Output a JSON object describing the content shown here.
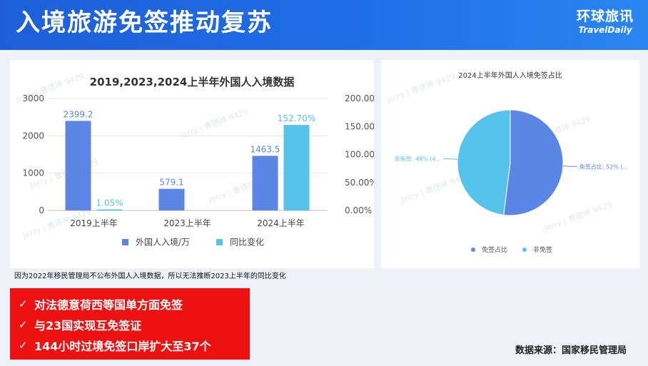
{
  "header": {
    "title": "入境旅游免签推动复苏"
  },
  "logo": {
    "cn": "环球旅讯",
    "en": "TravelDaily"
  },
  "watermark": "Jerry | 曹德坤 9429",
  "chart_data": [
    {
      "type": "bar",
      "title": "2019,2023,2024上半年外国人入境数据",
      "categories": [
        "2019上半年",
        "2023上半年",
        "2024上半年"
      ],
      "series": [
        {
          "name": "外国人入境/万",
          "axis": "left",
          "values": [
            2399.2,
            579.1,
            1463.5
          ],
          "labels": [
            "2399.2",
            "579.1",
            "1463.5"
          ],
          "color": "#5b86e5"
        },
        {
          "name": "同比变化",
          "axis": "right",
          "values": [
            1.05,
            null,
            152.7
          ],
          "labels": [
            "1.05%",
            "",
            "152.70%"
          ],
          "color": "#56c3ec"
        }
      ],
      "y_left": {
        "ylim": [
          0,
          3000
        ],
        "ticks": [
          0,
          1000,
          2000,
          3000
        ]
      },
      "y_right": {
        "ylim": [
          0,
          200
        ],
        "ticks": [
          "0.00%",
          "50.00%",
          "100.00%",
          "150.00%",
          "200.00%"
        ]
      },
      "legend": "bottom",
      "grid": true
    },
    {
      "type": "pie",
      "title": "2024上半年外国人入境免签占比",
      "slices": [
        {
          "name": "免签占比",
          "value": 52,
          "label": "免签占比: 52% (...",
          "color": "#5b86e5"
        },
        {
          "name": "非免签",
          "value": 48,
          "label": "非免签: 48% (4...",
          "color": "#56c3ec"
        }
      ],
      "legend": "bottom"
    }
  ],
  "footnote": "因为2022年移民管理局不公布外国人入境数据，所以无法推断2023上半年的同比变化",
  "bullets": [
    {
      "check": "✓",
      "text": "对法德意荷西等国单方面免签"
    },
    {
      "check": "✓",
      "text": "与23国实现互免签证"
    },
    {
      "check": "✓",
      "text": "144小时过境免签口岸扩大至37个"
    }
  ],
  "source": "数据来源：国家移民管理局"
}
